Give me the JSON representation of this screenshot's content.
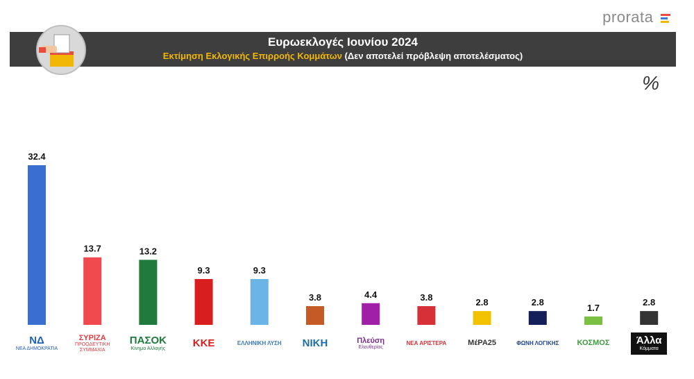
{
  "brand": {
    "name": "prorata",
    "colors": [
      "#e94b3c",
      "#3a7bd5",
      "#f2b705"
    ]
  },
  "header": {
    "title": "Ευρωεκλογές Ιουνίου 2024",
    "subtitle_accent": "Εκτίμηση Εκλογικής Επιρροής Κομμάτων",
    "subtitle_rest": "(Δεν αποτελεί πρόβλεψη αποτελέσματος)"
  },
  "unit_symbol": "%",
  "chart_data": {
    "type": "bar",
    "title": "Ευρωεκλογές Ιουνίου 2024",
    "subtitle": "Εκτίμηση Εκλογικής Επιρροής Κομμάτων (Δεν αποτελεί πρόβλεψη αποτελέσματος)",
    "ylabel": "%",
    "ylim": [
      0,
      32.4
    ],
    "grid": false,
    "categories": [
      "ΝΔ",
      "ΣΥΡΙΖΑ",
      "ΠΑΣΟΚ",
      "ΚΚΕ",
      "Ελληνική Λύση",
      "Νίκη",
      "Πλεύση Ελευθερίας",
      "Νέα Αριστερά",
      "ΜέΡΑ25",
      "Φωνή Λογικής",
      "Κόσμος",
      "Άλλα Κόμματα"
    ],
    "values": [
      32.4,
      13.7,
      13.2,
      9.3,
      9.3,
      3.8,
      4.4,
      3.8,
      2.8,
      2.8,
      1.7,
      2.8
    ],
    "value_labels": [
      "32.4",
      "13.7",
      "13.2",
      "9.3",
      "9.3",
      "3.8",
      "4.4",
      "3.8",
      "2.8",
      "2.8",
      "1.7",
      "2.8"
    ],
    "colors": [
      "#3a6fd0",
      "#f04a4f",
      "#1f7a3c",
      "#d81e1e",
      "#6bb5e6",
      "#c45a25",
      "#a020a8",
      "#d63038",
      "#f2c200",
      "#14205a",
      "#7cc043",
      "#333333"
    ]
  },
  "party_logos": [
    {
      "text": "ΝΔ",
      "sub": "ΝΕΑ ΔΗΜΟΚΡΑΤΙΑ",
      "color": "#1f5fbf"
    },
    {
      "text": "ΣΥΡΙΖΑ",
      "sub": "ΠΡΟΟΔΕΥΤΙΚΗ ΣΥΜΜΑΧΙΑ",
      "color": "#e0393e"
    },
    {
      "text": "ΠΑΣΟΚ",
      "sub": "Κίνημα Αλλαγής",
      "color": "#1f7a3c"
    },
    {
      "text": "ΚΚΕ",
      "sub": "",
      "color": "#d81e1e"
    },
    {
      "text": "ΕΛΛΗΝΙΚΗ ΛΥΣΗ",
      "sub": "",
      "color": "#3a78b8"
    },
    {
      "text": "ΝΙΚΗ",
      "sub": "",
      "color": "#1b6fa8"
    },
    {
      "text": "Πλεύση",
      "sub": "Ελευθερίας",
      "color": "#7a2f8f"
    },
    {
      "text": "ΝΕΑ ΑΡΙΣΤΕΡΑ",
      "sub": "",
      "color": "#d63038"
    },
    {
      "text": "ΜέΡΑ25",
      "sub": "",
      "color": "#333333"
    },
    {
      "text": "ΦΩΝΗ ΛΟΓΙΚΗΣ",
      "sub": "",
      "color": "#1a3f8f"
    },
    {
      "text": "ΚΟΣΜΟΣ",
      "sub": "",
      "color": "#3c9a3c"
    },
    {
      "text": "Άλλα",
      "sub": "Κόμματα",
      "color": "#ffffff"
    }
  ]
}
